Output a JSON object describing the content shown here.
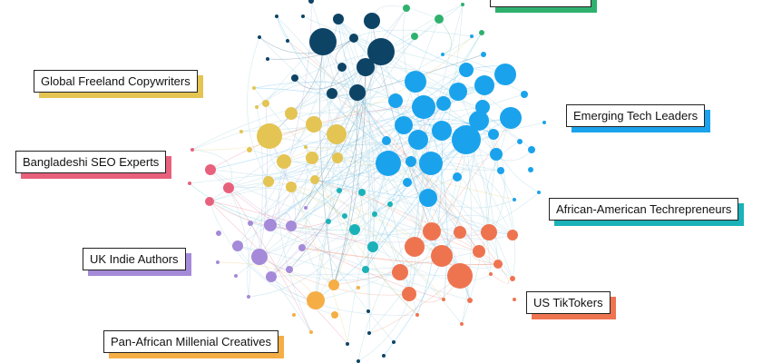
{
  "colors": {
    "navy": "#0d4466",
    "green": "#2fb16e",
    "blue": "#1aa3ec",
    "yellow": "#e4c452",
    "pink": "#e8617c",
    "teal": "#1ab2b8",
    "purple": "#a48ad8",
    "orange": "#ee7450",
    "amber": "#f5ae45",
    "edge": "#b9dce8"
  },
  "communities": [
    {
      "id": "copywriters",
      "label": "Global Freeland Copywriters",
      "color": "#e4c452"
    },
    {
      "id": "seo",
      "label": "Bangladeshi SEO Experts",
      "color": "#e8617c"
    },
    {
      "id": "indie",
      "label": "UK Indie Authors",
      "color": "#a48ad8"
    },
    {
      "id": "creatives",
      "label": "Pan-African Millenial Creatives",
      "color": "#f5ae45"
    },
    {
      "id": "tech",
      "label": "Emerging Tech Leaders",
      "color": "#1aa3ec"
    },
    {
      "id": "techpreneurs",
      "label": "African-American Techrepreneurs",
      "color": "#1ab2b8"
    },
    {
      "id": "tiktok",
      "label": "US TikTokers",
      "color": "#ee7450"
    },
    {
      "id": "top",
      "label": "",
      "color": "#2fb16e"
    }
  ]
}
